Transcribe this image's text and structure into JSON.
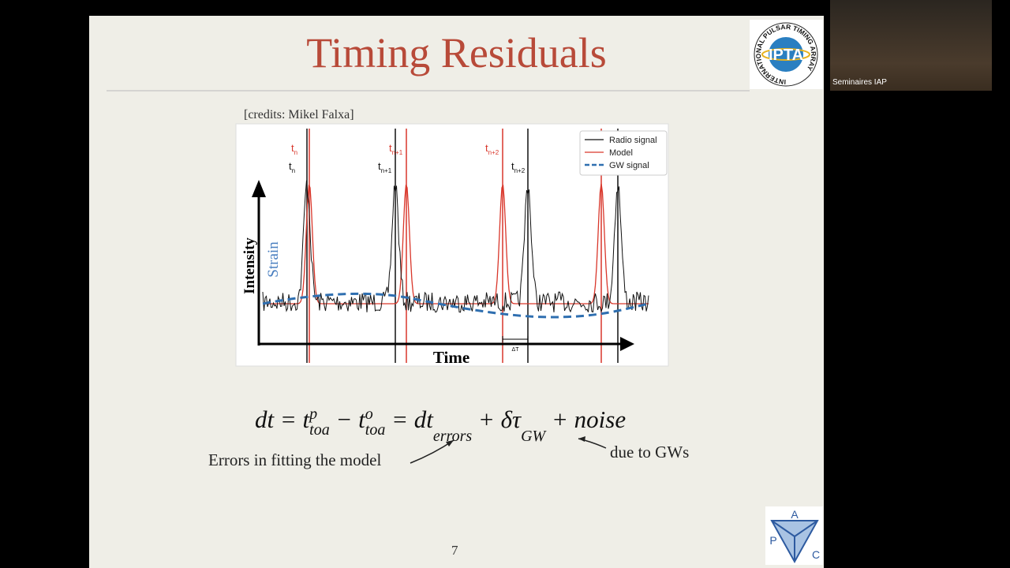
{
  "slide": {
    "title": "Timing Residuals",
    "credits": "[credits: Mikel Falxa]",
    "figure": {
      "legend": [
        "Radio signal",
        "Model",
        "GW signal"
      ],
      "model_labels": [
        {
          "base": "t",
          "sub": "n"
        },
        {
          "base": "t",
          "sub": "n+1"
        },
        {
          "base": "t",
          "sub": "n+2"
        }
      ],
      "observed_labels": [
        {
          "base": "t",
          "sub": "n"
        },
        {
          "base": "t",
          "sub": "n+1"
        },
        {
          "base": "t",
          "sub": "n+2"
        }
      ],
      "y_label": "Intensity",
      "y2_label": "Strain",
      "x_label": "Time",
      "delta_label": "ΔT"
    },
    "equation": [
      {
        "text": "dt = "
      },
      {
        "text": "t",
        "sup": "p",
        "sub": "toa"
      },
      {
        "text": " − "
      },
      {
        "text": "t",
        "sup": "o",
        "sub": "toa"
      },
      {
        "text": " = dt",
        "sub": "errors"
      },
      {
        "text": " + δτ",
        "sub": "GW"
      },
      {
        "text": " + noise"
      }
    ],
    "annotation_left": "Errors in fitting the model",
    "annotation_right": "due to GWs",
    "page_number": "7",
    "ipta_ring": "INTERNATIONAL PULSAR TIMING ARRAY",
    "ipta_center": "IPTA",
    "apc_letters": [
      "A",
      "P",
      "C"
    ]
  },
  "webcam": {
    "label": "Seminaires IAP"
  }
}
